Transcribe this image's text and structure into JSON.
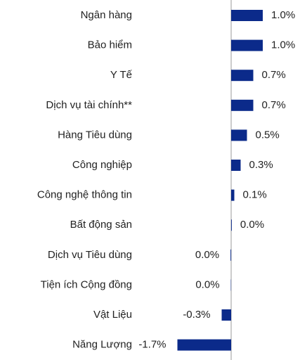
{
  "chart_data": {
    "type": "bar",
    "orientation": "horizontal",
    "categories": [
      "Ngân hàng",
      "Bảo hiểm",
      "Y Tế",
      "Dịch vụ tài chính**",
      "Hàng Tiêu dùng",
      "Công nghiệp",
      "Công nghệ thông tin",
      "Bất động sản",
      "Dịch vụ Tiêu dùng",
      "Tiện ích Cộng đồng",
      "Vật Liệu",
      "Năng Lượng"
    ],
    "values": [
      1.0,
      1.0,
      0.7,
      0.7,
      0.5,
      0.3,
      0.1,
      0.02,
      -0.02,
      -0.01,
      -0.3,
      -1.7
    ],
    "value_labels": [
      "1.0%",
      "1.0%",
      "0.7%",
      "0.7%",
      "0.5%",
      "0.3%",
      "0.1%",
      "0.0%",
      "0.0%",
      "0.0%",
      "-0.3%",
      "-1.7%"
    ],
    "color": "#0b2a8a"
  }
}
